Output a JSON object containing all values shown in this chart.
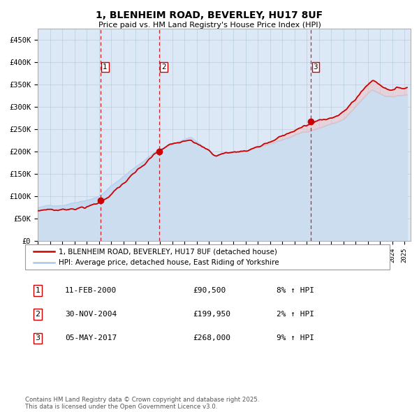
{
  "title": "1, BLENHEIM ROAD, BEVERLEY, HU17 8UF",
  "subtitle": "Price paid vs. HM Land Registry's House Price Index (HPI)",
  "legend_line1": "1, BLENHEIM ROAD, BEVERLEY, HU17 8UF (detached house)",
  "legend_line2": "HPI: Average price, detached house, East Riding of Yorkshire",
  "sale_points": [
    {
      "label": "1",
      "date": "11-FEB-2000",
      "price": 90500,
      "pct": "8% ↑ HPI"
    },
    {
      "label": "2",
      "date": "30-NOV-2004",
      "price": 199950,
      "pct": "2% ↑ HPI"
    },
    {
      "label": "3",
      "date": "05-MAY-2017",
      "price": 268000,
      "pct": "9% ↑ HPI"
    }
  ],
  "sale_dates_decimal": [
    2000.12,
    2004.92,
    2017.34
  ],
  "sale_prices": [
    90500,
    199950,
    268000
  ],
  "hpi_line_color": "#a8c8e8",
  "price_line_color": "#cc0000",
  "sale_dot_color": "#cc0000",
  "vline_color": "#cc0000",
  "background_color": "#ffffff",
  "plot_bg_color": "#dce8f5",
  "grid_color": "#b8cfe0",
  "ylim": [
    0,
    475000
  ],
  "ytick_values": [
    0,
    50000,
    100000,
    150000,
    200000,
    250000,
    300000,
    350000,
    400000,
    450000
  ],
  "ytick_labels": [
    "£0",
    "£50K",
    "£100K",
    "£150K",
    "£200K",
    "£250K",
    "£300K",
    "£350K",
    "£400K",
    "£450K"
  ],
  "footnote": "Contains HM Land Registry data © Crown copyright and database right 2025.\nThis data is licensed under the Open Government Licence v3.0."
}
